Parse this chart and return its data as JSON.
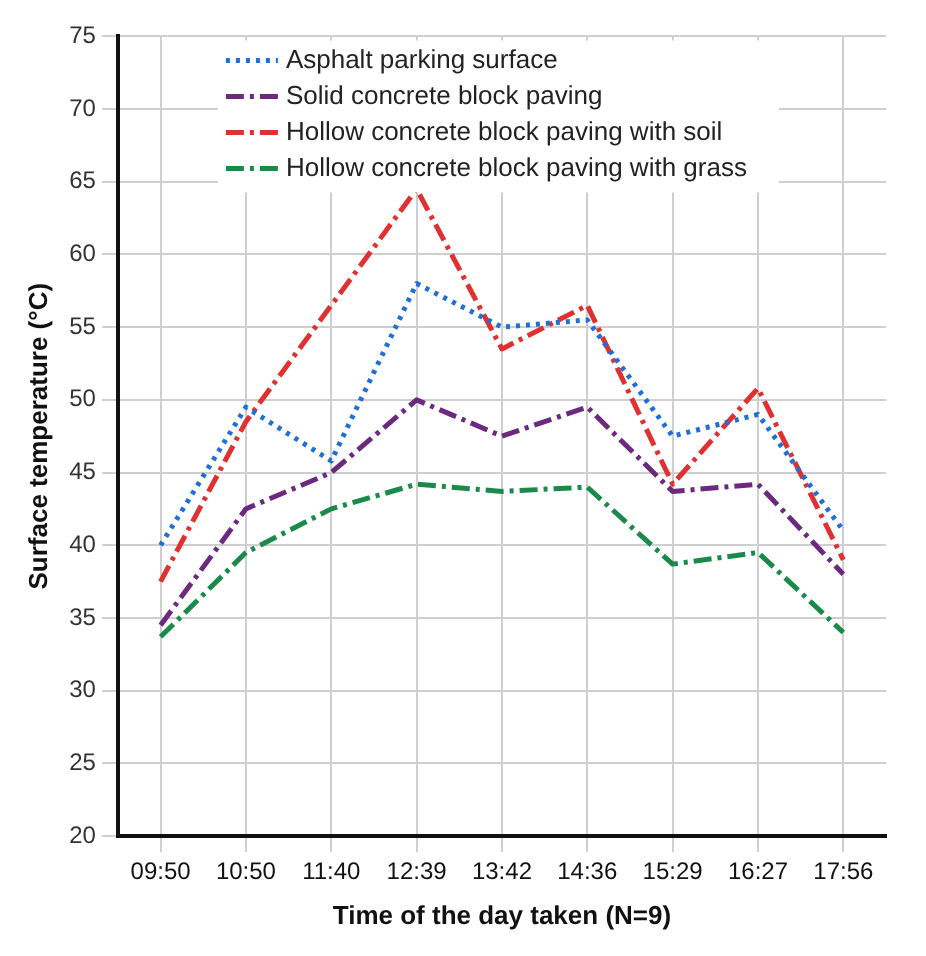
{
  "chart_data": {
    "type": "line",
    "xlabel": "Time of the day taken (N=9)",
    "ylabel": "Surface temperature (°C)",
    "categories": [
      "09:50",
      "10:50",
      "11:40",
      "12:39",
      "13:42",
      "14:36",
      "15:29",
      "16:27",
      "17:56"
    ],
    "series": [
      {
        "name": "Asphalt parking surface",
        "color": "#1f6fd6",
        "line_style": "dotted",
        "values": [
          40,
          49.5,
          45.8,
          58,
          55,
          55.5,
          47.5,
          49,
          41
        ]
      },
      {
        "name": "Solid concrete block paving",
        "color": "#6b2a80",
        "line_style": "dashed",
        "values": [
          34.5,
          42.5,
          45,
          50,
          47.5,
          49.5,
          43.7,
          44.2,
          38
        ]
      },
      {
        "name": "Hollow concrete block paving with soil",
        "color": "#e03030",
        "line_style": "dashed",
        "values": [
          37.5,
          48.5,
          56.5,
          64.5,
          53.5,
          56.5,
          44.2,
          50.8,
          39
        ]
      },
      {
        "name": "Hollow concrete block paving with grass",
        "color": "#1a8a4a",
        "line_style": "dashed",
        "values": [
          33.7,
          39.5,
          42.5,
          44.2,
          43.7,
          44,
          38.7,
          39.5,
          34
        ]
      }
    ],
    "ylim": [
      20,
      75
    ],
    "yticks": [
      20,
      25,
      30,
      35,
      40,
      45,
      50,
      55,
      60,
      65,
      70,
      75
    ],
    "grid": true,
    "legend": "top left",
    "marker": "none"
  }
}
